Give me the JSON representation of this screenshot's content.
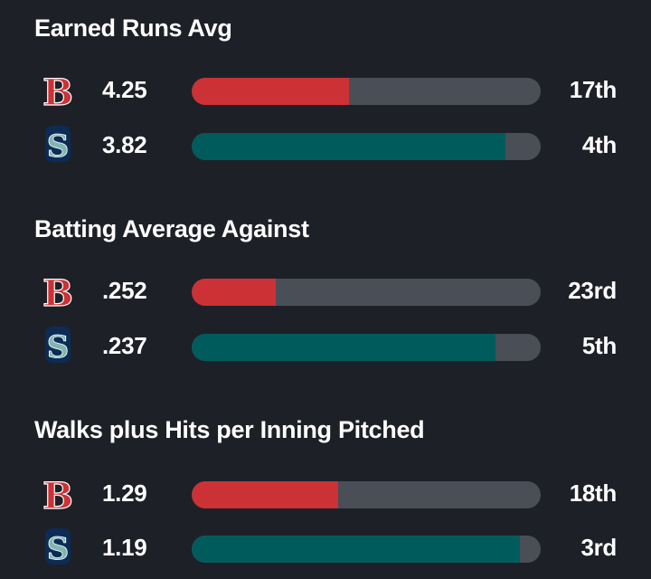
{
  "colors": {
    "background": "#1e2027",
    "red_sox": "#cc3235",
    "mariners": "#005c5c",
    "track": "#4a4e57"
  },
  "teams": [
    {
      "id": "red-sox",
      "logo_letter": "B",
      "icon": "red-sox-logo-icon"
    },
    {
      "id": "mariners",
      "logo_letter": "S",
      "icon": "mariners-logo-icon"
    }
  ],
  "stats": [
    {
      "title": "Earned Runs Avg",
      "rows": [
        {
          "team": "red-sox",
          "value": "4.25",
          "rank": "17th",
          "bar_fraction": 0.45
        },
        {
          "team": "mariners",
          "value": "3.82",
          "rank": "4th",
          "bar_fraction": 0.9
        }
      ]
    },
    {
      "title": "Batting Average Against",
      "rows": [
        {
          "team": "red-sox",
          "value": ".252",
          "rank": "23rd",
          "bar_fraction": 0.24
        },
        {
          "team": "mariners",
          "value": ".237",
          "rank": "5th",
          "bar_fraction": 0.87
        }
      ]
    },
    {
      "title": "Walks plus Hits per Inning Pitched",
      "rows": [
        {
          "team": "red-sox",
          "value": "1.29",
          "rank": "18th",
          "bar_fraction": 0.42
        },
        {
          "team": "mariners",
          "value": "1.19",
          "rank": "3rd",
          "bar_fraction": 0.94
        }
      ]
    }
  ]
}
